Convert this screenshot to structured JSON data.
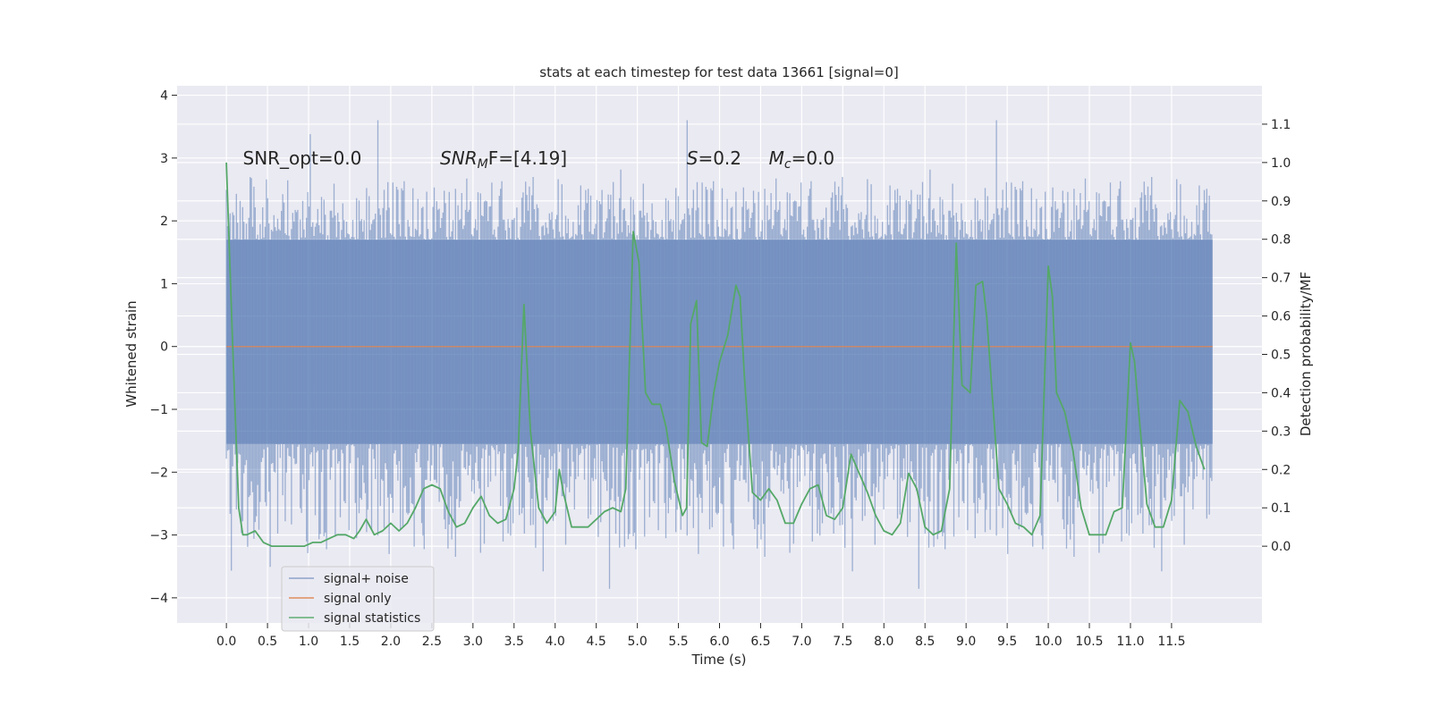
{
  "chart_data": {
    "type": "line",
    "title": "stats at each timestep for test data 13661 [signal=0]",
    "xlabel": "Time (s)",
    "ylabel": "Whitened strain",
    "ylabel_right": "Detection probability/MF",
    "xlim": [
      -0.6,
      12.6
    ],
    "ylim": [
      -4.4,
      4.15
    ],
    "ylim_right": [
      -0.2,
      1.2
    ],
    "x_ticks": [
      0.0,
      0.5,
      1.0,
      1.5,
      2.0,
      2.5,
      3.0,
      3.5,
      4.0,
      4.5,
      5.0,
      5.5,
      6.0,
      6.5,
      7.0,
      7.5,
      8.0,
      8.5,
      9.0,
      9.5,
      10.0,
      10.5,
      11.0,
      11.5
    ],
    "x_tick_labels": [
      "0.0",
      "0.5",
      "1.0",
      "1.5",
      "2.0",
      "2.5",
      "3.0",
      "3.5",
      "4.0",
      "4.5",
      "5.0",
      "5.5",
      "6.0",
      "6.5",
      "7.0",
      "7.5",
      "8.0",
      "8.5",
      "9.0",
      "9.5",
      "10.0",
      "10.5",
      "11.0",
      "11.5"
    ],
    "y_ticks": [
      -4,
      -3,
      -2,
      -1,
      0,
      1,
      2,
      3,
      4
    ],
    "y_tick_labels": [
      "−4",
      "−3",
      "−2",
      "−1",
      "0",
      "1",
      "2",
      "3",
      "4"
    ],
    "y_ticks_right": [
      0.0,
      0.1,
      0.2,
      0.3,
      0.4,
      0.5,
      0.6,
      0.7,
      0.8,
      0.9,
      1.0,
      1.1
    ],
    "y_tick_labels_right": [
      "0.0",
      "0.1",
      "0.2",
      "0.3",
      "0.4",
      "0.5",
      "0.6",
      "0.7",
      "0.8",
      "0.9",
      "1.0",
      "1.1"
    ],
    "grid": true,
    "legend_position": "lower-left",
    "annotations": [
      {
        "text": "SNR_opt=0.0",
        "x": 0.2,
        "y": 3.0
      },
      {
        "text": "SNR",
        "sub": "M",
        "rest": "F=[4.19]",
        "italic_base": true,
        "x": 2.6,
        "y": 3.0
      },
      {
        "text": "S",
        "rest": "=0.2",
        "italic_base": true,
        "x": 5.6,
        "y": 3.0
      },
      {
        "text": "M",
        "sub": "c",
        "rest": "=0.0",
        "italic_base": true,
        "x": 6.6,
        "y": 3.0
      }
    ],
    "series": [
      {
        "name": "signal+ noise",
        "color": "#4c72b0",
        "opacity": 0.5,
        "style": "noise-band",
        "x_range": [
          0.0,
          12.0
        ],
        "core_range": [
          -1.55,
          1.7
        ],
        "typical_extreme": 2.4,
        "peak_extreme": 4.0
      },
      {
        "name": "signal only",
        "color": "#dd8452",
        "x": [
          0.0,
          12.0
        ],
        "y": [
          0.0,
          0.0
        ]
      },
      {
        "name": "signal statistics",
        "color": "#55a868",
        "axis": "right",
        "x": [
          0.0,
          0.08,
          0.15,
          0.2,
          0.25,
          0.35,
          0.45,
          0.55,
          0.7,
          0.8,
          0.95,
          1.05,
          1.15,
          1.25,
          1.35,
          1.45,
          1.55,
          1.62,
          1.7,
          1.8,
          1.9,
          2.0,
          2.1,
          2.2,
          2.3,
          2.4,
          2.5,
          2.6,
          2.7,
          2.8,
          2.9,
          3.0,
          3.1,
          3.2,
          3.3,
          3.4,
          3.5,
          3.55,
          3.62,
          3.7,
          3.8,
          3.9,
          4.0,
          4.05,
          4.1,
          4.2,
          4.3,
          4.4,
          4.5,
          4.6,
          4.7,
          4.8,
          4.86,
          4.95,
          5.02,
          5.1,
          5.18,
          5.28,
          5.35,
          5.45,
          5.55,
          5.6,
          5.65,
          5.72,
          5.78,
          5.85,
          5.93,
          6.0,
          6.1,
          6.2,
          6.25,
          6.3,
          6.4,
          6.5,
          6.6,
          6.7,
          6.8,
          6.9,
          7.0,
          7.1,
          7.2,
          7.3,
          7.4,
          7.5,
          7.6,
          7.7,
          7.8,
          7.9,
          8.0,
          8.1,
          8.2,
          8.3,
          8.4,
          8.5,
          8.6,
          8.7,
          8.8,
          8.88,
          8.95,
          9.0,
          9.05,
          9.12,
          9.2,
          9.25,
          9.35,
          9.4,
          9.5,
          9.6,
          9.7,
          9.8,
          9.9,
          10.0,
          10.05,
          10.1,
          10.2,
          10.3,
          10.4,
          10.5,
          10.6,
          10.7,
          10.8,
          10.9,
          11.0,
          11.05,
          11.1,
          11.2,
          11.3,
          11.4,
          11.5,
          11.6,
          11.7,
          11.8,
          11.9
        ],
        "y": [
          1.0,
          0.5,
          0.1,
          0.03,
          0.03,
          0.04,
          0.01,
          0.0,
          0.0,
          0.0,
          0.0,
          0.01,
          0.01,
          0.02,
          0.03,
          0.03,
          0.02,
          0.04,
          0.07,
          0.03,
          0.04,
          0.06,
          0.04,
          0.06,
          0.1,
          0.15,
          0.16,
          0.15,
          0.09,
          0.05,
          0.06,
          0.1,
          0.13,
          0.08,
          0.06,
          0.07,
          0.15,
          0.25,
          0.63,
          0.3,
          0.1,
          0.06,
          0.09,
          0.2,
          0.14,
          0.05,
          0.05,
          0.05,
          0.07,
          0.09,
          0.1,
          0.09,
          0.15,
          0.82,
          0.74,
          0.4,
          0.37,
          0.37,
          0.31,
          0.17,
          0.08,
          0.1,
          0.58,
          0.64,
          0.27,
          0.26,
          0.4,
          0.48,
          0.55,
          0.68,
          0.65,
          0.45,
          0.14,
          0.12,
          0.15,
          0.12,
          0.06,
          0.06,
          0.11,
          0.15,
          0.16,
          0.08,
          0.07,
          0.1,
          0.24,
          0.19,
          0.14,
          0.08,
          0.04,
          0.03,
          0.06,
          0.19,
          0.15,
          0.05,
          0.03,
          0.04,
          0.15,
          0.79,
          0.42,
          0.41,
          0.4,
          0.68,
          0.69,
          0.6,
          0.3,
          0.15,
          0.11,
          0.06,
          0.05,
          0.03,
          0.08,
          0.73,
          0.65,
          0.4,
          0.35,
          0.25,
          0.1,
          0.03,
          0.03,
          0.03,
          0.09,
          0.1,
          0.53,
          0.48,
          0.35,
          0.11,
          0.05,
          0.05,
          0.12,
          0.38,
          0.35,
          0.26,
          0.2
        ]
      }
    ]
  }
}
